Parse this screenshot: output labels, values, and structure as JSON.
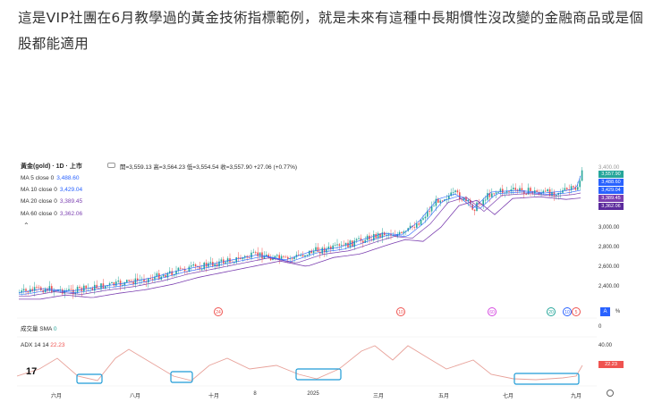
{
  "post": {
    "text": "這是VIP社團在6月教學過的黃金技術指標範例，就是未來有這種中長期慣性沒改變的金融商品或是個股都能適用"
  },
  "chart": {
    "symbol_label": "黃金(gold) · 1D · 上市",
    "ohlc_text": "開=3,559.13 高=3,564.23 低=3,554.54 收=3,557.90 +27.06 (+0.77%)",
    "ma_rows": [
      {
        "label": "MA 5 close 0",
        "value": "3,488.60",
        "color": "#2962ff"
      },
      {
        "label": "MA 10 close 0",
        "value": "3,429.04",
        "color": "#2962ff"
      },
      {
        "label": "MA 20 close 0",
        "value": "3,389.45",
        "color": "#7b3fb0"
      },
      {
        "label": "MA 60 close 0",
        "value": "3,362.06",
        "color": "#7b3fb0"
      }
    ],
    "price_tags": [
      {
        "value": "3,557.90",
        "color": "#26a69a"
      },
      {
        "value": "3,488.60",
        "color": "#2962ff"
      },
      {
        "value": "3,429.04",
        "color": "#2962ff"
      },
      {
        "value": "3,389.45",
        "color": "#7b3fb0"
      },
      {
        "value": "3,362.06",
        "color": "#5b2a9c"
      }
    ],
    "price_axis": [
      "3,000.00",
      "2,800.00",
      "2,600.00",
      "2,400.00"
    ],
    "top_axis_partial": "3,400.00",
    "volume_label": "成交量 SMA",
    "volume_value": "0",
    "volume_axis": "0",
    "adx_label": "ADX 14 14",
    "adx_value": "22.23",
    "adx_axis": "40.00",
    "adx_tag": "22.23",
    "adx_tag_color": "#ef5350",
    "date_axis": [
      "六月",
      "八月",
      "十月",
      "8",
      "2025",
      "三月",
      "五月",
      "七月",
      "九月"
    ],
    "event_bubbles": [
      {
        "text": "24",
        "color": "#ef5350"
      },
      {
        "text": "10",
        "color": "#ef5350"
      },
      {
        "text": "60",
        "color": "#d54ae0"
      },
      {
        "text": "20",
        "color": "#26a69a"
      },
      {
        "text": "10",
        "color": "#2962ff"
      },
      {
        "text": "5",
        "color": "#ef5350"
      }
    ],
    "scale_btn_a": "A",
    "scale_btn_pct": "%",
    "logo_text": "17",
    "settings_icon": "gear-icon",
    "collapse_icon": "chevron-up-icon",
    "candle_up_color": "#26a69a",
    "candle_down_color": "#ef5350",
    "highlight_color": "#1e9bd6"
  }
}
